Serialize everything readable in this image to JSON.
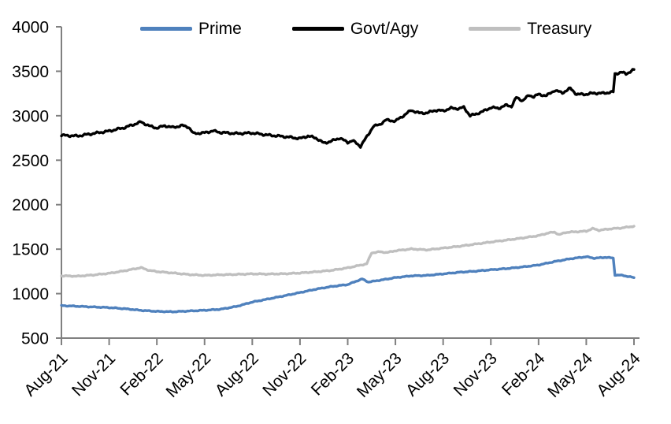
{
  "chart_data": {
    "type": "line",
    "title": "",
    "xlabel": "",
    "ylabel": "",
    "ylim": [
      500,
      4000
    ],
    "ytick_step": 500,
    "ytick_labels": [
      "500",
      "1000",
      "1500",
      "2000",
      "2500",
      "3000",
      "3500",
      "4000"
    ],
    "x_tick_labels": [
      "Aug-21",
      "Nov-21",
      "Feb-22",
      "May-22",
      "Aug-22",
      "Nov-22",
      "Feb-23",
      "May-23",
      "Aug-23",
      "Nov-23",
      "Feb-24",
      "May-24",
      "Aug-24"
    ],
    "x_unit": "months since Aug-21 (0 = Aug-21, 36 = Aug-24)",
    "grid": false,
    "legend_position": "top",
    "axis_color": "#808080",
    "series": [
      {
        "name": "Prime",
        "color": "#4f81bd",
        "points": [
          [
            0,
            865
          ],
          [
            1,
            858
          ],
          [
            2,
            850
          ],
          [
            3,
            843
          ],
          [
            4,
            830
          ],
          [
            5,
            812
          ],
          [
            6,
            800
          ],
          [
            7,
            796
          ],
          [
            8,
            804
          ],
          [
            9,
            813
          ],
          [
            10,
            824
          ],
          [
            11,
            856
          ],
          [
            12,
            905
          ],
          [
            13,
            940
          ],
          [
            14,
            975
          ],
          [
            15,
            1012
          ],
          [
            16,
            1050
          ],
          [
            17,
            1080
          ],
          [
            18,
            1102
          ],
          [
            18.9,
            1165
          ],
          [
            19.3,
            1130
          ],
          [
            20,
            1150
          ],
          [
            21,
            1180
          ],
          [
            22,
            1200
          ],
          [
            23,
            1205
          ],
          [
            24,
            1222
          ],
          [
            25,
            1240
          ],
          [
            26,
            1252
          ],
          [
            27,
            1268
          ],
          [
            28,
            1282
          ],
          [
            29,
            1300
          ],
          [
            30,
            1322
          ],
          [
            31,
            1360
          ],
          [
            32,
            1392
          ],
          [
            33,
            1415
          ],
          [
            33.5,
            1398
          ],
          [
            34.2,
            1408
          ],
          [
            34.7,
            1400
          ],
          [
            34.8,
            1210
          ],
          [
            35.3,
            1205
          ],
          [
            36,
            1180
          ]
        ]
      },
      {
        "name": "Govt/Agy",
        "color": "#000000",
        "points": [
          [
            0,
            2780
          ],
          [
            1,
            2772
          ],
          [
            2,
            2800
          ],
          [
            3,
            2828
          ],
          [
            4,
            2868
          ],
          [
            5,
            2930
          ],
          [
            5.6,
            2880
          ],
          [
            6,
            2862
          ],
          [
            6.5,
            2888
          ],
          [
            7,
            2868
          ],
          [
            7.6,
            2890
          ],
          [
            8,
            2872
          ],
          [
            8.3,
            2800
          ],
          [
            9,
            2808
          ],
          [
            9.5,
            2830
          ],
          [
            10,
            2812
          ],
          [
            11,
            2800
          ],
          [
            12,
            2806
          ],
          [
            13,
            2782
          ],
          [
            14,
            2766
          ],
          [
            15,
            2744
          ],
          [
            15.5,
            2772
          ],
          [
            16,
            2750
          ],
          [
            16.5,
            2692
          ],
          [
            17,
            2716
          ],
          [
            17.5,
            2750
          ],
          [
            18,
            2700
          ],
          [
            18.3,
            2722
          ],
          [
            18.8,
            2656
          ],
          [
            19.3,
            2790
          ],
          [
            19.6,
            2880
          ],
          [
            20,
            2900
          ],
          [
            20.4,
            2952
          ],
          [
            21,
            2940
          ],
          [
            21.5,
            3000
          ],
          [
            22,
            3062
          ],
          [
            22.5,
            3030
          ],
          [
            23,
            3032
          ],
          [
            23.5,
            3062
          ],
          [
            24,
            3055
          ],
          [
            24.5,
            3085
          ],
          [
            25,
            3080
          ],
          [
            25.3,
            3095
          ],
          [
            25.7,
            3000
          ],
          [
            26,
            3015
          ],
          [
            26.5,
            3048
          ],
          [
            27,
            3092
          ],
          [
            27.5,
            3085
          ],
          [
            28,
            3120
          ],
          [
            28.3,
            3105
          ],
          [
            28.6,
            3205
          ],
          [
            29,
            3170
          ],
          [
            29.4,
            3230
          ],
          [
            29.7,
            3215
          ],
          [
            30,
            3240
          ],
          [
            30.5,
            3225
          ],
          [
            31,
            3285
          ],
          [
            31.5,
            3258
          ],
          [
            32,
            3308
          ],
          [
            32.4,
            3240
          ],
          [
            33,
            3242
          ],
          [
            33.5,
            3255
          ],
          [
            34,
            3252
          ],
          [
            34.7,
            3268
          ],
          [
            34.8,
            3470
          ],
          [
            35.2,
            3490
          ],
          [
            35.5,
            3470
          ],
          [
            36,
            3520
          ]
        ]
      },
      {
        "name": "Treasury",
        "color": "#bfbfbf",
        "points": [
          [
            0,
            1200
          ],
          [
            1,
            1196
          ],
          [
            2,
            1210
          ],
          [
            3,
            1228
          ],
          [
            4,
            1258
          ],
          [
            5,
            1292
          ],
          [
            5.5,
            1262
          ],
          [
            6,
            1248
          ],
          [
            7,
            1232
          ],
          [
            8,
            1215
          ],
          [
            9,
            1205
          ],
          [
            10,
            1212
          ],
          [
            11,
            1216
          ],
          [
            12,
            1222
          ],
          [
            13,
            1220
          ],
          [
            14,
            1223
          ],
          [
            15,
            1232
          ],
          [
            16,
            1245
          ],
          [
            17,
            1262
          ],
          [
            18,
            1290
          ],
          [
            18.8,
            1320
          ],
          [
            19.2,
            1335
          ],
          [
            19.5,
            1458
          ],
          [
            20,
            1470
          ],
          [
            20.5,
            1462
          ],
          [
            21,
            1482
          ],
          [
            22,
            1502
          ],
          [
            23,
            1492
          ],
          [
            24,
            1512
          ],
          [
            25,
            1532
          ],
          [
            26,
            1556
          ],
          [
            27,
            1580
          ],
          [
            28,
            1602
          ],
          [
            29,
            1626
          ],
          [
            30,
            1652
          ],
          [
            30.6,
            1682
          ],
          [
            31,
            1692
          ],
          [
            31.3,
            1662
          ],
          [
            31.7,
            1688
          ],
          [
            32,
            1692
          ],
          [
            33,
            1702
          ],
          [
            33.4,
            1732
          ],
          [
            33.8,
            1712
          ],
          [
            34.5,
            1728
          ],
          [
            35.2,
            1738
          ],
          [
            36,
            1758
          ]
        ]
      }
    ]
  }
}
